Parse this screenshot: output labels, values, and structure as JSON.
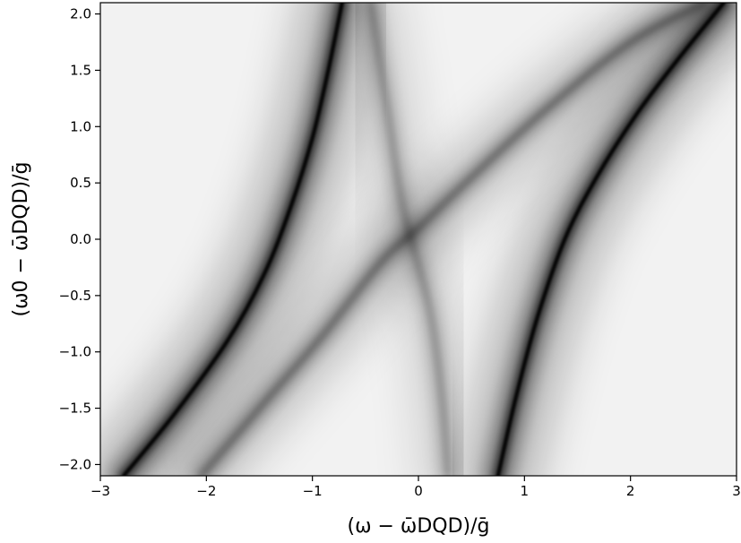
{
  "chart_data": {
    "type": "heatmap",
    "colormap": "grayscale (white = low, black = high)",
    "xlabel": "(ω − ω̄DQD)/ḡ",
    "ylabel": "(ω0 − ω̄DQD)/ḡ",
    "xlim": [
      -3,
      3
    ],
    "ylim": [
      -2.1,
      2.1
    ],
    "grid": false,
    "x_ticks": [
      {
        "value": -3,
        "label": "−3"
      },
      {
        "value": -2,
        "label": "−2"
      },
      {
        "value": -1,
        "label": "−1"
      },
      {
        "value": 0,
        "label": "0"
      },
      {
        "value": 1,
        "label": "1"
      },
      {
        "value": 2,
        "label": "2"
      },
      {
        "value": 3,
        "label": "3"
      }
    ],
    "y_ticks": [
      {
        "value": -2.0,
        "label": "−2.0"
      },
      {
        "value": -1.5,
        "label": "−1.5"
      },
      {
        "value": -1.0,
        "label": "−1.0"
      },
      {
        "value": -0.5,
        "label": "−0.5"
      },
      {
        "value": 0.0,
        "label": "0.0"
      },
      {
        "value": 0.5,
        "label": "0.5"
      },
      {
        "value": 1.0,
        "label": "1.0"
      },
      {
        "value": 1.5,
        "label": "1.5"
      },
      {
        "value": 2.0,
        "label": "2.0"
      }
    ],
    "features": [
      {
        "kind": "dark resonance branch",
        "intensity": 0.9,
        "points": [
          [
            -2.78,
            -2.1
          ],
          [
            -2.3,
            -1.55
          ],
          [
            -1.8,
            -0.9
          ],
          [
            -1.45,
            -0.3
          ],
          [
            -1.2,
            0.3
          ],
          [
            -1.0,
            0.9
          ],
          [
            -0.85,
            1.5
          ],
          [
            -0.72,
            2.1
          ]
        ]
      },
      {
        "kind": "dark resonance branch",
        "intensity": 0.95,
        "points": [
          [
            0.75,
            -2.1
          ],
          [
            0.92,
            -1.4
          ],
          [
            1.12,
            -0.7
          ],
          [
            1.38,
            0.0
          ],
          [
            1.68,
            0.55
          ],
          [
            2.05,
            1.1
          ],
          [
            2.45,
            1.6
          ],
          [
            2.88,
            2.1
          ]
        ]
      },
      {
        "kind": "faint diagonal branch",
        "intensity": 0.45,
        "points": [
          [
            -2.05,
            -2.1
          ],
          [
            -1.5,
            -1.5
          ],
          [
            -0.9,
            -0.85
          ],
          [
            -0.35,
            -0.2
          ],
          [
            0.0,
            0.1
          ],
          [
            0.5,
            0.55
          ],
          [
            1.2,
            1.15
          ],
          [
            2.0,
            1.75
          ],
          [
            2.7,
            2.1
          ]
        ]
      },
      {
        "kind": "faint central band",
        "intensity": 0.3,
        "points": [
          [
            0.28,
            -2.1
          ],
          [
            0.22,
            -1.4
          ],
          [
            0.1,
            -0.6
          ],
          [
            -0.15,
            0.3
          ],
          [
            -0.3,
            1.2
          ],
          [
            -0.45,
            2.1
          ]
        ]
      }
    ]
  }
}
